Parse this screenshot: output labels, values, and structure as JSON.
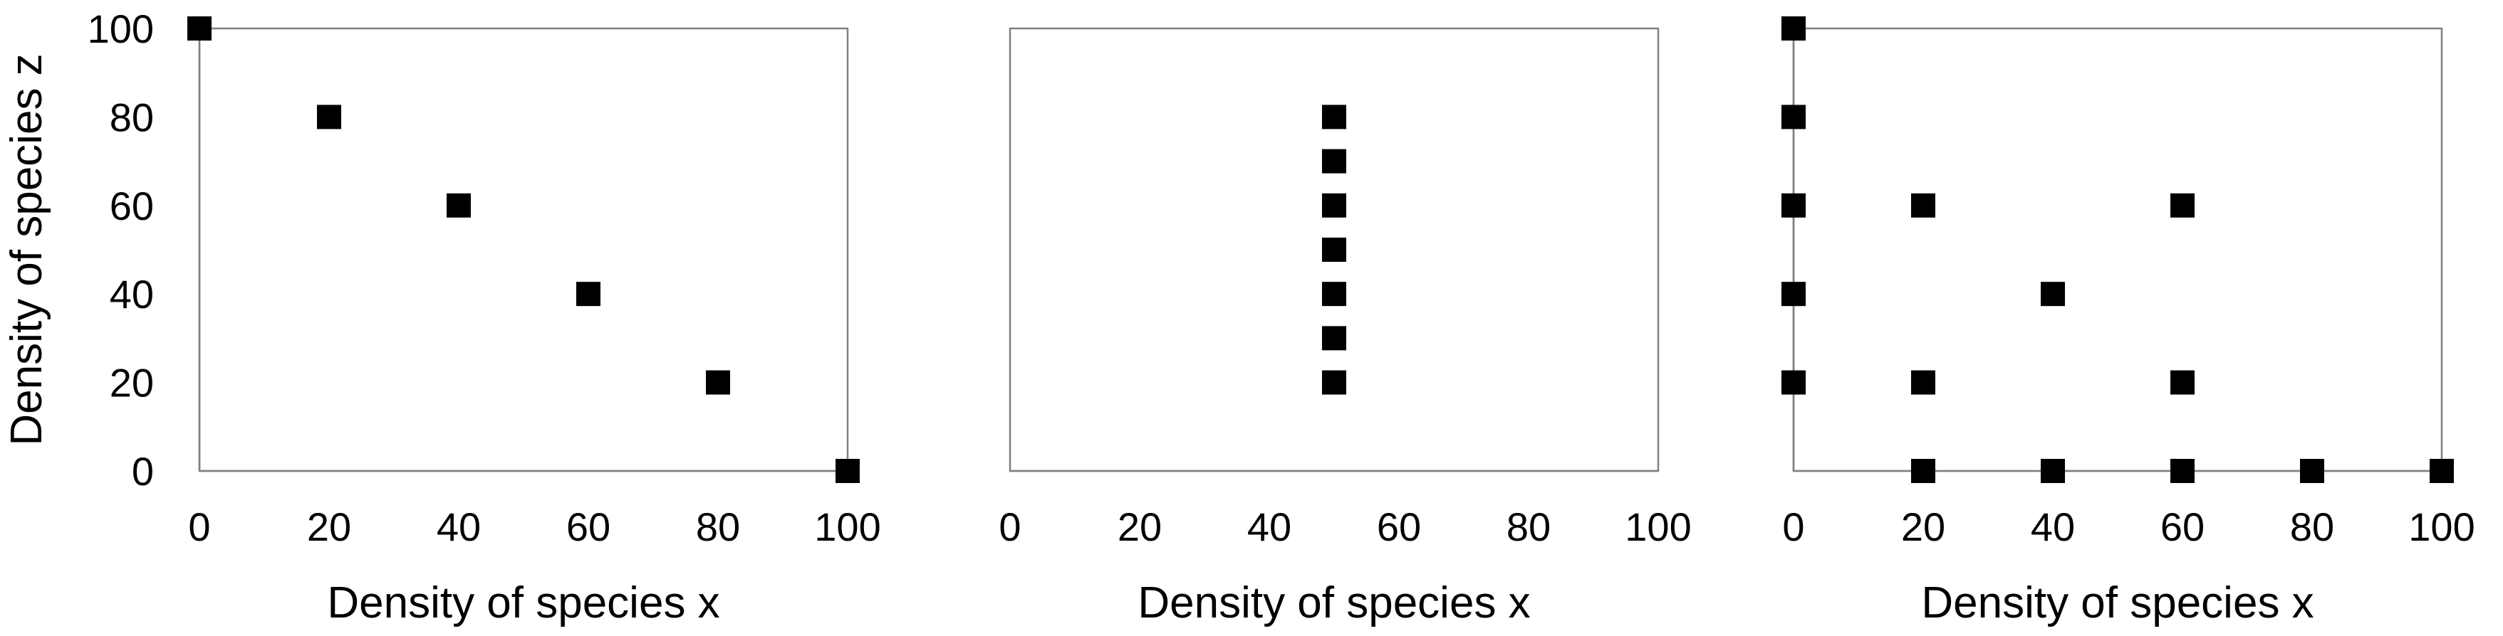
{
  "chart_data": [
    {
      "type": "scatter",
      "title": "",
      "xlabel": "Density of species x",
      "ylabel": "Density of species z",
      "xlim": [
        0,
        100
      ],
      "ylim": [
        0,
        100
      ],
      "x_ticks": [
        "0",
        "20",
        "40",
        "60",
        "80",
        "100"
      ],
      "y_ticks": [
        "0",
        "20",
        "40",
        "60",
        "80",
        "100"
      ],
      "show_y_ticks": true,
      "show_y_axis_line": true,
      "marker": "square",
      "marker_color": "#000000",
      "grid": false,
      "legend": "none",
      "points": [
        {
          "x": 0,
          "y": 100
        },
        {
          "x": 20,
          "y": 80
        },
        {
          "x": 40,
          "y": 60
        },
        {
          "x": 60,
          "y": 40
        },
        {
          "x": 80,
          "y": 20
        },
        {
          "x": 100,
          "y": 0
        }
      ]
    },
    {
      "type": "scatter",
      "title": "",
      "xlabel": "Density of species x",
      "ylabel": "",
      "xlim": [
        0,
        100
      ],
      "ylim": [
        0,
        100
      ],
      "x_ticks": [
        "0",
        "20",
        "40",
        "60",
        "80",
        "100"
      ],
      "y_ticks": [],
      "show_y_ticks": false,
      "show_y_axis_line": false,
      "marker": "square",
      "marker_color": "#000000",
      "grid": false,
      "legend": "none",
      "points": [
        {
          "x": 50,
          "y": 80
        },
        {
          "x": 50,
          "y": 70
        },
        {
          "x": 50,
          "y": 60
        },
        {
          "x": 50,
          "y": 50
        },
        {
          "x": 50,
          "y": 40
        },
        {
          "x": 50,
          "y": 30
        },
        {
          "x": 50,
          "y": 20
        }
      ]
    },
    {
      "type": "scatter",
      "title": "",
      "xlabel": "Density of species x",
      "ylabel": "",
      "xlim": [
        0,
        100
      ],
      "ylim": [
        0,
        100
      ],
      "x_ticks": [
        "0",
        "20",
        "40",
        "60",
        "80",
        "100"
      ],
      "y_ticks": [],
      "show_y_ticks": false,
      "show_y_axis_line": true,
      "marker": "square",
      "marker_color": "#000000",
      "grid": false,
      "legend": "none",
      "points": [
        {
          "x": 0,
          "y": 100
        },
        {
          "x": 0,
          "y": 80
        },
        {
          "x": 0,
          "y": 60
        },
        {
          "x": 0,
          "y": 40
        },
        {
          "x": 0,
          "y": 20
        },
        {
          "x": 20,
          "y": 60
        },
        {
          "x": 20,
          "y": 20
        },
        {
          "x": 20,
          "y": 0
        },
        {
          "x": 40,
          "y": 40
        },
        {
          "x": 40,
          "y": 0
        },
        {
          "x": 60,
          "y": 60
        },
        {
          "x": 60,
          "y": 20
        },
        {
          "x": 60,
          "y": 0
        },
        {
          "x": 80,
          "y": 0
        },
        {
          "x": 100,
          "y": 0
        }
      ]
    }
  ]
}
